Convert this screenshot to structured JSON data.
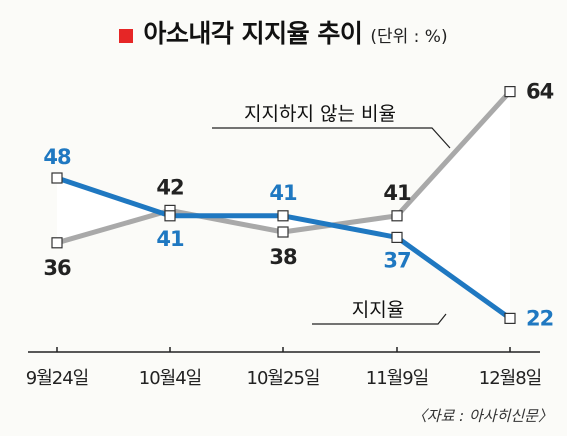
{
  "title": "아소내각 지지율 추이",
  "unit": "(단위 : %)",
  "source": "〈자료 : 아사히신문〉",
  "colors": {
    "approval": "#1f78c1",
    "disapproval": "#a9a9a9",
    "title_marker": "#e62626",
    "label_dark": "#222222"
  },
  "chart_data": {
    "type": "line",
    "categories": [
      "9월24일",
      "10월4일",
      "10월25일",
      "11월9일",
      "12월8일"
    ],
    "series": [
      {
        "name": "지지율",
        "values": [
          48,
          41,
          41,
          37,
          22
        ]
      },
      {
        "name": "지지하지 않는 비율",
        "values": [
          36,
          42,
          38,
          41,
          64
        ]
      }
    ],
    "data_labels": {
      "지지율": [
        "48",
        "41",
        "41",
        "37",
        "22"
      ],
      "지지하지 않는 비율": [
        "36",
        "42",
        "38",
        "41",
        "64"
      ]
    },
    "ylim": [
      18,
      68
    ],
    "grid": false,
    "legend": "inline-callouts"
  }
}
